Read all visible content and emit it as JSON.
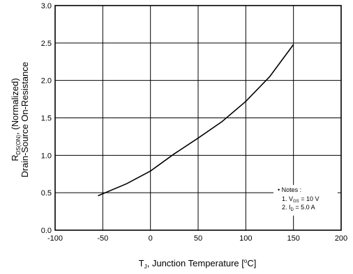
{
  "chart_data": {
    "type": "line",
    "xlabel": {
      "main": "T",
      "sub": "J",
      "rest": ", Junction Temperature [",
      "sup": "o",
      "end": "C]"
    },
    "ylabel": {
      "line1_main": "R",
      "line1_sub": "DS(ON)",
      "line1_rest": ", (Normalized)",
      "line2": "Drain-Source On-Resistance"
    },
    "xlim": [
      -100,
      200
    ],
    "ylim": [
      0.0,
      3.0
    ],
    "x_ticks": [
      "-100",
      "-50",
      "0",
      "50",
      "100",
      "150",
      "200"
    ],
    "y_ticks": [
      "0.0",
      "0.5",
      "1.0",
      "1.5",
      "2.0",
      "2.5",
      "3.0"
    ],
    "grid": true,
    "series": [
      {
        "x": [
          -55,
          -25,
          0,
          25,
          50,
          75,
          100,
          125,
          150
        ],
        "y": [
          0.46,
          0.62,
          0.79,
          1.02,
          1.23,
          1.45,
          1.72,
          2.05,
          2.48
        ]
      }
    ],
    "notes": {
      "title": "Notes :",
      "line1": {
        "prefix": "1. V",
        "sub": "GS",
        "rest": " = 10 V"
      },
      "line2": {
        "prefix": "2. I",
        "sub": "D",
        "rest": " = 5.0 A"
      }
    }
  }
}
